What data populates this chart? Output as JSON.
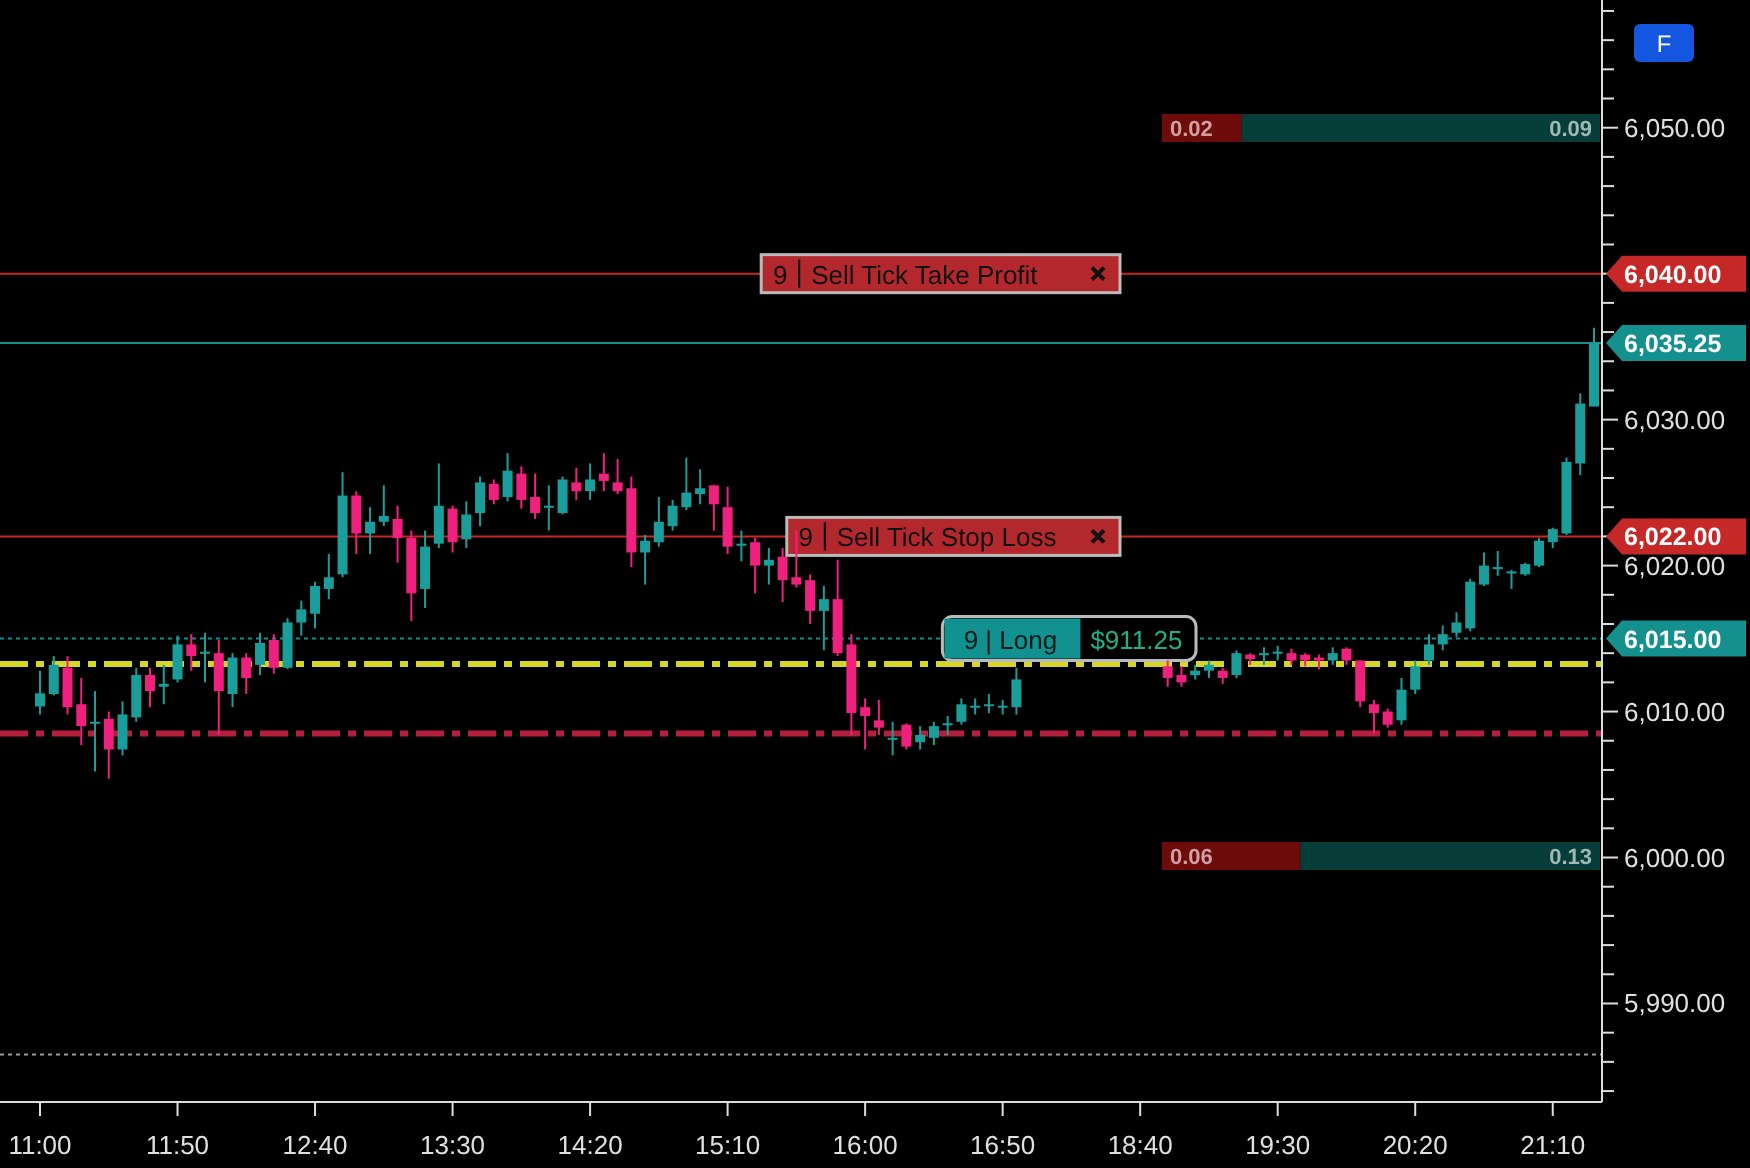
{
  "chart_data": {
    "type": "candlestick",
    "categories": [
      "11:00",
      null,
      null,
      null,
      null,
      null,
      null,
      null,
      null,
      null,
      "11:50",
      null,
      null,
      null,
      null,
      null,
      null,
      null,
      null,
      null,
      "12:40",
      null,
      null,
      null,
      null,
      null,
      null,
      null,
      null,
      null,
      "13:30",
      null,
      null,
      null,
      null,
      null,
      null,
      null,
      null,
      null,
      "14:20",
      null,
      null,
      null,
      null,
      null,
      null,
      null,
      null,
      null,
      "15:10",
      null,
      null,
      null,
      null,
      null,
      null,
      null,
      null,
      null,
      "16:00",
      null,
      null,
      null,
      null,
      null,
      null,
      null,
      null,
      null,
      "16:50",
      null,
      null,
      null,
      null,
      null,
      null,
      null,
      null,
      null,
      "18:40",
      null,
      null,
      null,
      null,
      null,
      null,
      null,
      null,
      null,
      "19:30",
      null,
      null,
      null,
      null,
      null,
      null,
      null,
      null,
      null,
      "20:20",
      null,
      null,
      null,
      null,
      null,
      null,
      null,
      null,
      null,
      "21:10",
      null,
      null,
      null
    ],
    "colors": [
      "#1a9e9b",
      "#1a9e9b",
      "#f0207f",
      "#f0207f",
      "#1a9e9b",
      "#f0207f",
      "#1a9e9b",
      "#1a9e9b",
      "#f0207f",
      "#1a9e9b",
      "#1a9e9b",
      "#f0207f",
      "#1a9e9b",
      "#f0207f",
      "#1a9e9b",
      "#f0207f",
      "#1a9e9b",
      "#f0207f",
      "#1a9e9b",
      "#1a9e9b",
      "#1a9e9b",
      "#1a9e9b",
      "#1a9e9b",
      "#f0207f",
      "#1a9e9b",
      "#1a9e9b",
      "#f0207f",
      "#f0207f",
      "#1a9e9b",
      "#1a9e9b",
      "#f0207f",
      "#1a9e9b",
      "#1a9e9b",
      "#f0207f",
      "#1a9e9b",
      "#f0207f",
      "#f0207f",
      "#1a9e9b",
      "#1a9e9b",
      "#f0207f",
      "#1a9e9b",
      "#f0207f",
      "#f0207f",
      "#f0207f",
      "#1a9e9b",
      "#1a9e9b",
      "#1a9e9b",
      "#1a9e9b",
      "#1a9e9b",
      "#f0207f",
      "#f0207f",
      "#1a9e9b",
      "#f0207f",
      "#1a9e9b",
      "#f0207f",
      "#f0207f",
      "#f0207f",
      "#1a9e9b",
      "#f0207f",
      "#f0207f",
      "#f0207f",
      "#f0207f",
      "#1a9e9b",
      "#f0207f",
      "#1a9e9b",
      "#1a9e9b",
      "#1a9e9b",
      "#1a9e9b",
      "#1a9e9b",
      "#1a9e9b",
      "#1a9e9b",
      "#1a9e9b",
      null,
      null,
      null,
      null,
      null,
      null,
      null,
      null,
      null,
      null,
      "#f0207f",
      "#f0207f",
      "#1a9e9b",
      "#1a9e9b",
      "#f0207f",
      "#1a9e9b",
      "#f0207f",
      "#1a9e9b",
      "#1a9e9b",
      "#f0207f",
      "#f0207f",
      "#f0207f",
      "#1a9e9b",
      "#f0207f",
      "#f0207f",
      "#f0207f",
      "#f0207f",
      "#1a9e9b",
      "#1a9e9b",
      "#1a9e9b",
      "#1a9e9b",
      "#1a9e9b",
      "#1a9e9b",
      "#1a9e9b",
      "#1a9e9b",
      "#1a9e9b",
      "#1a9e9b",
      "#1a9e9b",
      "#1a9e9b",
      "#1a9e9b",
      "#1a9e9b",
      "#1a9e9b"
    ],
    "ohlc": [
      [
        6010.35,
        6012.8,
        6009.8,
        6011.25
      ],
      [
        6011.2,
        6013.8,
        6011.1,
        6013.2
      ],
      [
        6013,
        6013.8,
        6009.8,
        6010.3
      ],
      [
        6010.5,
        6012.3,
        6007.7,
        6009
      ],
      [
        6009.2,
        6011.4,
        6005.9,
        6009.3
      ],
      [
        6009.5,
        6010,
        6005.4,
        6007.4
      ],
      [
        6007.4,
        6010.7,
        6007,
        6009.8
      ],
      [
        6009.6,
        6013,
        6009.3,
        6012.5
      ],
      [
        6012.5,
        6013,
        6010.3,
        6011.4
      ],
      [
        6011.7,
        6013.2,
        6010.5,
        6011.9
      ],
      [
        6012.2,
        6015.2,
        6012,
        6014.6
      ],
      [
        6014.6,
        6015.3,
        6012.8,
        6013.8
      ],
      [
        6014,
        6015.4,
        6012,
        6014.1
      ],
      [
        6014,
        6014.9,
        6008.4,
        6011.4
      ],
      [
        6011.2,
        6014,
        6010.3,
        6013.7
      ],
      [
        6013.7,
        6014,
        6011.2,
        6012.3
      ],
      [
        6013.2,
        6015.4,
        6012.5,
        6014.7
      ],
      [
        6014.9,
        6015.3,
        6012.6,
        6013
      ],
      [
        6013,
        6016.4,
        6012.9,
        6016.1
      ],
      [
        6016.1,
        6017.6,
        6015.2,
        6017
      ],
      [
        6016.7,
        6018.9,
        6015.7,
        6018.6
      ],
      [
        6018.4,
        6020.8,
        6017.7,
        6019.2
      ],
      [
        6019.4,
        6026.4,
        6019.2,
        6024.8
      ],
      [
        6024.8,
        6025.1,
        6020.8,
        6022.2
      ],
      [
        6022.2,
        6024,
        6020.8,
        6023
      ],
      [
        6023,
        6025.5,
        6022.7,
        6023.4
      ],
      [
        6023.2,
        6024.1,
        6020.2,
        6021.9
      ],
      [
        6021.9,
        6022.4,
        6016.2,
        6018.1
      ],
      [
        6018.4,
        6022.4,
        6017.1,
        6021.3
      ],
      [
        6021.5,
        6027,
        6021.2,
        6024.1
      ],
      [
        6023.9,
        6024.1,
        6020.9,
        6021.6
      ],
      [
        6021.8,
        6024.4,
        6021.2,
        6023.5
      ],
      [
        6023.6,
        6026.1,
        6022.7,
        6025.7
      ],
      [
        6025.6,
        6025.9,
        6024.2,
        6024.5
      ],
      [
        6024.7,
        6027.7,
        6024.4,
        6026.5
      ],
      [
        6026.3,
        6026.8,
        6023.9,
        6024.5
      ],
      [
        6024.7,
        6026.3,
        6023.2,
        6023.6
      ],
      [
        6024,
        6025.5,
        6022.4,
        6024.1
      ],
      [
        6023.6,
        6026.1,
        6023.5,
        6025.9
      ],
      [
        6025.7,
        6026.7,
        6024.5,
        6025.1
      ],
      [
        6025.1,
        6027,
        6024.5,
        6025.9
      ],
      [
        6026.3,
        6027.7,
        6025.1,
        6025.8
      ],
      [
        6025.7,
        6027.3,
        6024.9,
        6025.1
      ],
      [
        6025.3,
        6026.1,
        6019.9,
        6020.9
      ],
      [
        6020.9,
        6022.1,
        6018.7,
        6021.7
      ],
      [
        6021.6,
        6024.7,
        6021.3,
        6023
      ],
      [
        6022.7,
        6024.5,
        6022.4,
        6024.1
      ],
      [
        6024,
        6027.4,
        6023.8,
        6025
      ],
      [
        6024.9,
        6026.6,
        6024.2,
        6025.3
      ],
      [
        6025.5,
        6025.5,
        6022.4,
        6024.2
      ],
      [
        6024,
        6025.4,
        6020.8,
        6021.3
      ],
      [
        6021.4,
        6022.4,
        6020.3,
        6021.5
      ],
      [
        6021.6,
        6021.9,
        6018.1,
        6020
      ],
      [
        6020,
        6021.2,
        6018.7,
        6020.4
      ],
      [
        6020.6,
        6021.2,
        6017.5,
        6019
      ],
      [
        6019.2,
        6022.4,
        6018.5,
        6018.7
      ],
      [
        6019,
        6019.4,
        6016,
        6016.9
      ],
      [
        6016.9,
        6018.6,
        6014.2,
        6017.7
      ],
      [
        6017.7,
        6020.4,
        6013.8,
        6014
      ],
      [
        6014.6,
        6015.3,
        6008.4,
        6009.9
      ],
      [
        6010.3,
        6010.9,
        6007.4,
        6009.7
      ],
      [
        6009.4,
        6010.8,
        6008.4,
        6008.9
      ],
      [
        6008.1,
        6009.3,
        6007,
        6008.2
      ],
      [
        6009.1,
        6009.2,
        6007.4,
        6007.6
      ],
      [
        6007.9,
        6009,
        6007.4,
        6008.4
      ],
      [
        6008.2,
        6009.3,
        6007.7,
        6009
      ],
      [
        6009.1,
        6009.7,
        6008.4,
        6009.2
      ],
      [
        6009.3,
        6010.9,
        6009.1,
        6010.5
      ],
      [
        6010.3,
        6010.9,
        6009.8,
        6010.4
      ],
      [
        6010.4,
        6011.2,
        6009.9,
        6010.5
      ],
      [
        6010.3,
        6010.8,
        6009.8,
        6010.4
      ],
      [
        6010.3,
        6013,
        6009.8,
        6012.2
      ],
      null,
      null,
      null,
      null,
      null,
      null,
      null,
      null,
      null,
      null,
      [
        6013.1,
        6013.5,
        6011.7,
        6012.3
      ],
      [
        6012.5,
        6013.1,
        6011.7,
        6012
      ],
      [
        6012.5,
        6013.2,
        6012.2,
        6012.8
      ],
      [
        6012.8,
        6013.5,
        6012.3,
        6013.2
      ],
      [
        6012.8,
        6013,
        6011.9,
        6012.3
      ],
      [
        6012.5,
        6014.2,
        6012.3,
        6014
      ],
      [
        6013.9,
        6014,
        6013.2,
        6013.6
      ],
      [
        6013.9,
        6014.4,
        6013.2,
        6014
      ],
      [
        6014,
        6014.5,
        6013.5,
        6014.1
      ],
      [
        6014,
        6014.3,
        6013.2,
        6013.5
      ],
      [
        6013.9,
        6014,
        6013.1,
        6013.5
      ],
      [
        6013.7,
        6013.9,
        6012.9,
        6013.5
      ],
      [
        6013.5,
        6014.4,
        6013.2,
        6014
      ],
      [
        6014.3,
        6014.4,
        6013.2,
        6013.5
      ],
      [
        6013.5,
        6013.5,
        6010.3,
        6010.7
      ],
      [
        6010.5,
        6010.8,
        6008.5,
        6009.9
      ],
      [
        6010,
        6010.2,
        6008.9,
        6009.1
      ],
      [
        6009.4,
        6012.3,
        6009.1,
        6011.5
      ],
      [
        6011.5,
        6013.5,
        6011.2,
        6013.1
      ],
      [
        6013.5,
        6015.3,
        6013.2,
        6014.6
      ],
      [
        6014.6,
        6015.9,
        6014.2,
        6015.3
      ],
      [
        6015.4,
        6016.8,
        6015.1,
        6016.1
      ],
      [
        6015.7,
        6019.1,
        6015.5,
        6018.9
      ],
      [
        6018.7,
        6020.9,
        6018.6,
        6020
      ],
      [
        6019.8,
        6021,
        6019.3,
        6019.9
      ],
      [
        6019.5,
        6019.7,
        6018.4,
        6019.6
      ],
      [
        6019.4,
        6020.2,
        6019.3,
        6020.1
      ],
      [
        6020,
        6021.9,
        6019.9,
        6021.7
      ],
      [
        6021.6,
        6022.6,
        6021.2,
        6022.5
      ],
      [
        6022.2,
        6027.4,
        6022.1,
        6027.1
      ],
      [
        6027,
        6031.8,
        6026.2,
        6031.1
      ],
      [
        6030.9,
        6036.3,
        6030.9,
        6035.25
      ]
    ],
    "ylim": [
      5983.25,
      6058.75
    ],
    "yticks": [
      {
        "value": 5984,
        "label": null
      },
      {
        "value": 5986,
        "label": null
      },
      {
        "value": 5988,
        "label": null
      },
      {
        "value": 5990,
        "label": "5,990.00"
      },
      {
        "value": 5992,
        "label": null
      },
      {
        "value": 5994,
        "label": null
      },
      {
        "value": 5996,
        "label": null
      },
      {
        "value": 5998,
        "label": null
      },
      {
        "value": 6000,
        "label": "6,000.00"
      },
      {
        "value": 6002,
        "label": null
      },
      {
        "value": 6004,
        "label": null
      },
      {
        "value": 6006,
        "label": null
      },
      {
        "value": 6008,
        "label": null
      },
      {
        "value": 6010,
        "label": "6,010.00"
      },
      {
        "value": 6012,
        "label": null
      },
      {
        "value": 6014,
        "label": null
      },
      {
        "value": 6016,
        "label": null
      },
      {
        "value": 6018,
        "label": null
      },
      {
        "value": 6020,
        "label": "6,020.00"
      },
      {
        "value": 6022,
        "label": null
      },
      {
        "value": 6024,
        "label": null
      },
      {
        "value": 6026,
        "label": null
      },
      {
        "value": 6028,
        "label": null
      },
      {
        "value": 6030,
        "label": "6,030.00"
      },
      {
        "value": 6032,
        "label": null
      },
      {
        "value": 6034,
        "label": null
      },
      {
        "value": 6036,
        "label": null
      },
      {
        "value": 6038,
        "label": null
      },
      {
        "value": 6040,
        "label": null
      },
      {
        "value": 6042,
        "label": null
      },
      {
        "value": 6044,
        "label": null
      },
      {
        "value": 6046,
        "label": null
      },
      {
        "value": 6048,
        "label": null
      },
      {
        "value": 6050,
        "label": "6,050.00"
      },
      {
        "value": 6052,
        "label": null
      },
      {
        "value": 6054,
        "label": null
      },
      {
        "value": 6056,
        "label": null
      },
      {
        "value": 6058,
        "label": null
      }
    ],
    "ref_lines": [
      {
        "axis": "y",
        "value": 6040,
        "label": "6,040.00",
        "color": "#c62828",
        "line_style": "solid"
      },
      {
        "axis": "y",
        "value": 6035.25,
        "label": "6,035.25",
        "color": "#14908e",
        "line_style": "solid"
      },
      {
        "axis": "y",
        "value": 6022,
        "label": "6,022.00",
        "color": "#c62828",
        "line_style": "solid"
      },
      {
        "axis": "y",
        "value": 6015,
        "label": "6,015.00",
        "color": "#14908e",
        "line_style": "dotted"
      },
      {
        "axis": "y",
        "value": 6013.25,
        "color": "#d6d62a",
        "line_style": "dashed"
      },
      {
        "axis": "y",
        "value": 6008.5,
        "color": "#b31f3d",
        "line_style": "dashed"
      },
      {
        "axis": "y",
        "value": 5986.5,
        "color": "#9a9a9a",
        "line_style": "dotted"
      }
    ],
    "annotations": [
      {
        "text": "9",
        "y": 6040
      },
      {
        "text": "Sell Tick Take Profit",
        "y": 6040
      },
      {
        "text": "9",
        "y": 6022
      },
      {
        "text": "Sell Tick Stop Loss",
        "y": 6022
      },
      {
        "text": "9 | Long",
        "y": 6015
      },
      {
        "text": "$911.25",
        "y": 6015
      },
      "0.02",
      "0.09",
      "0.06",
      "0.13",
      "F"
    ]
  }
}
